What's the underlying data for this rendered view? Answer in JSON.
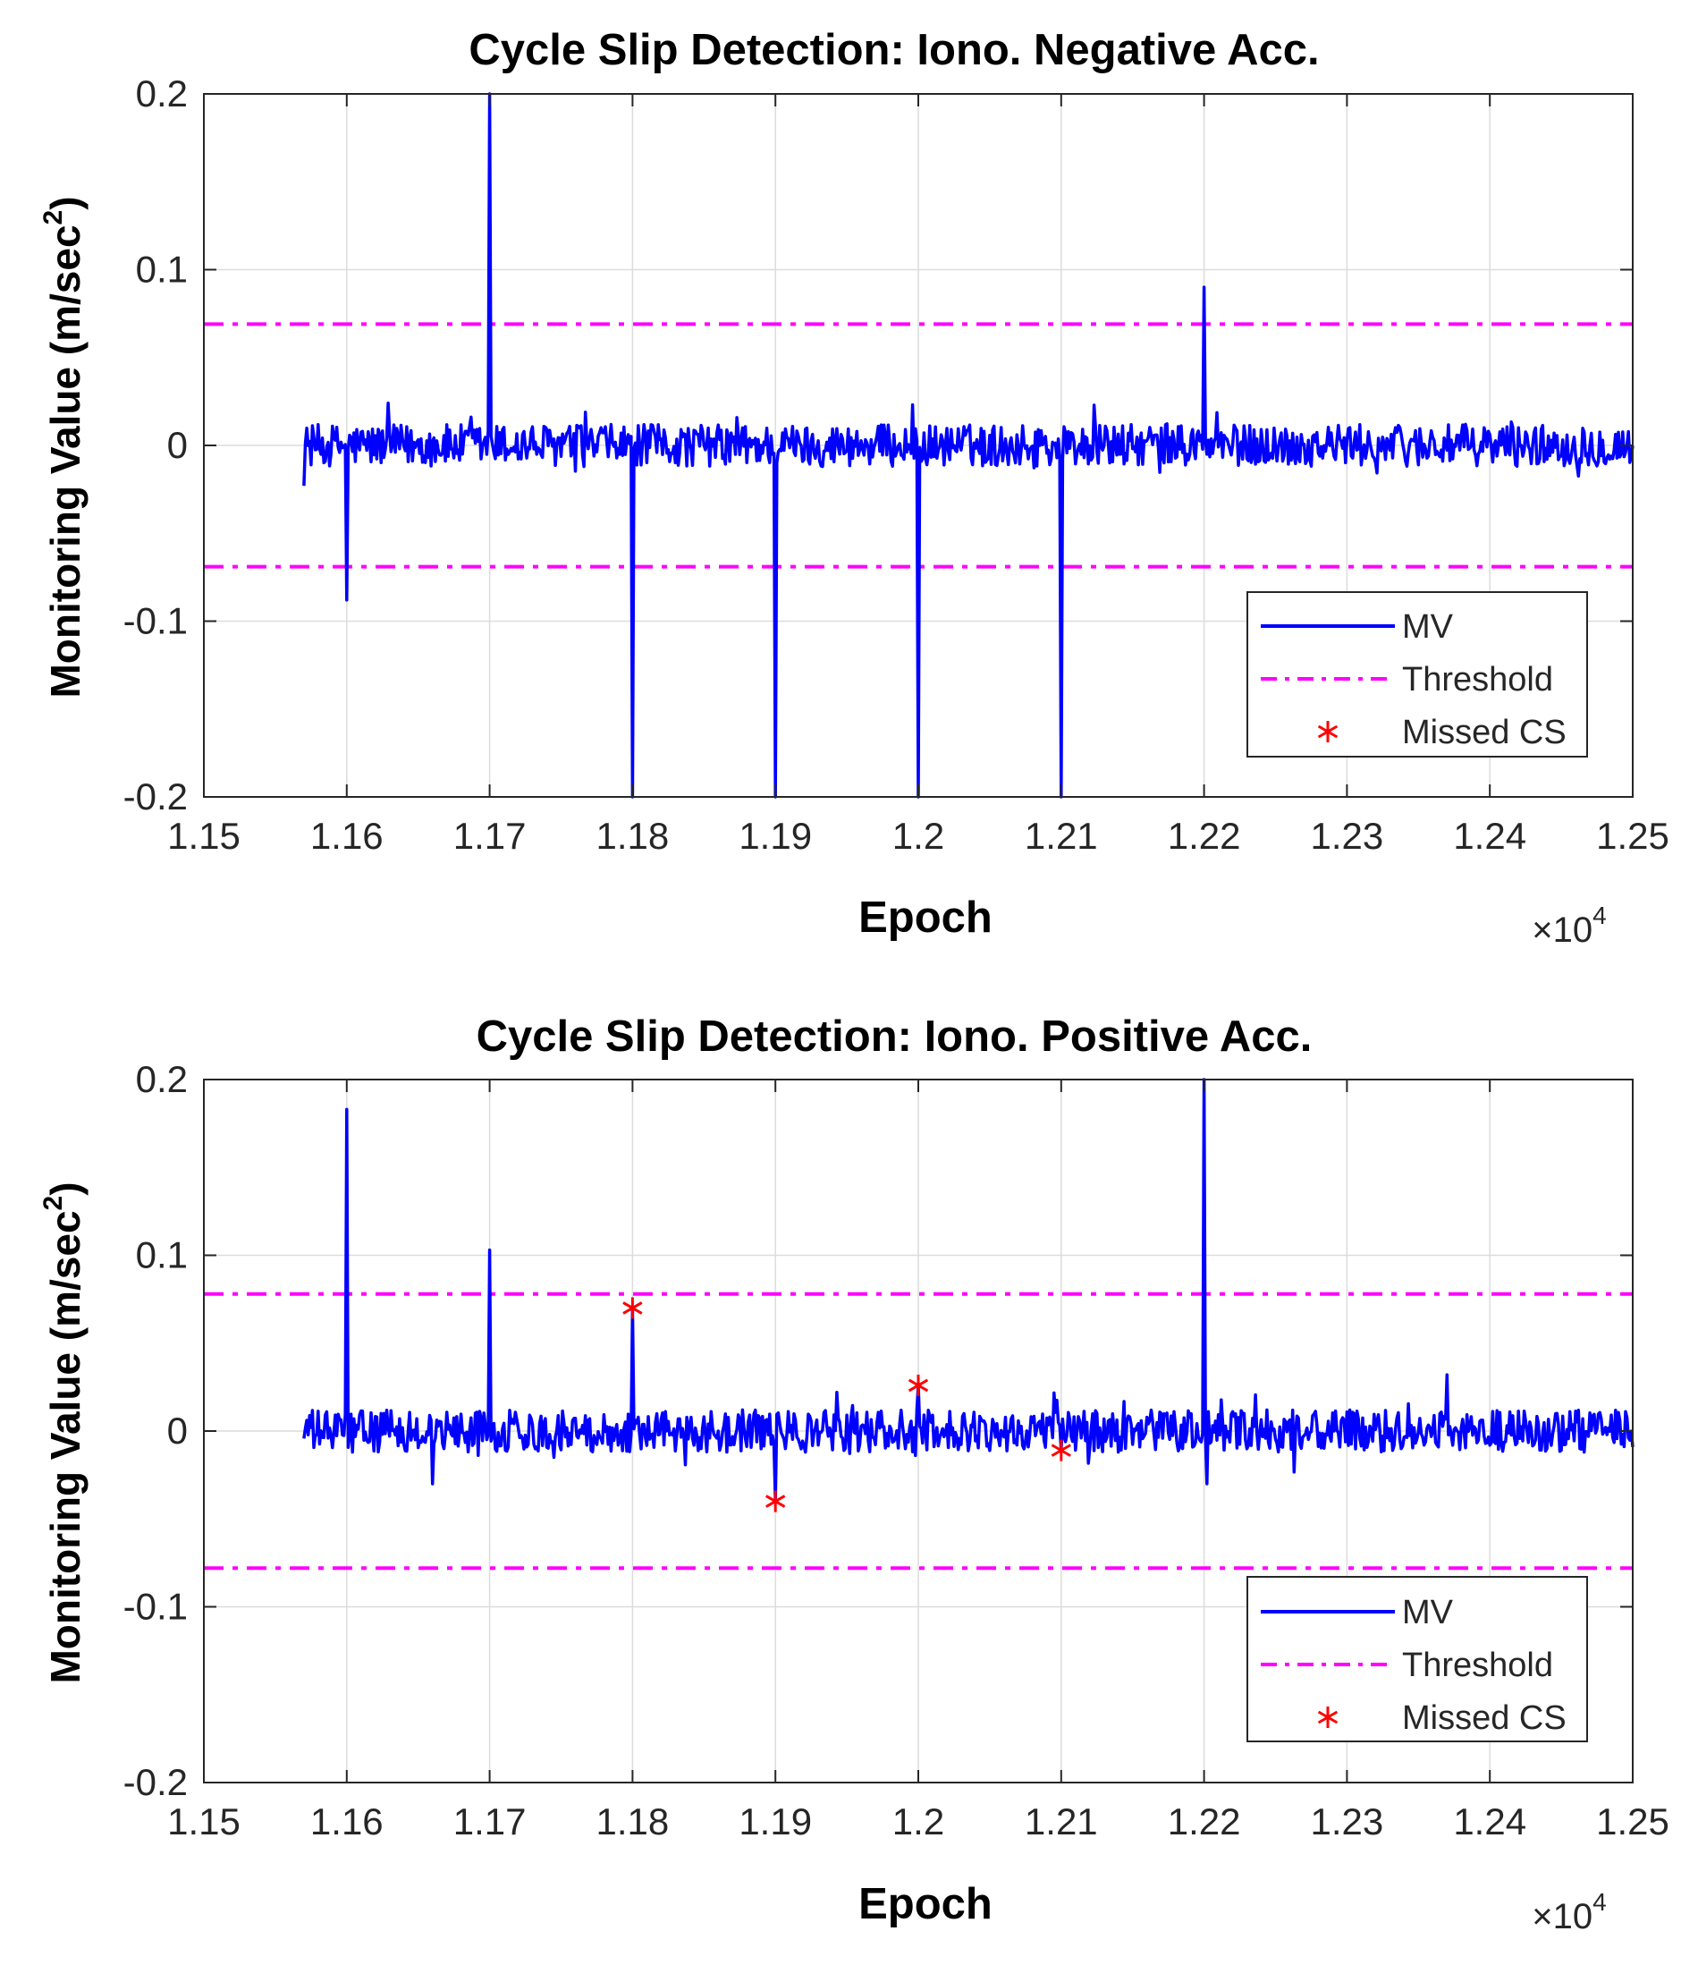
{
  "chart_data": [
    {
      "type": "line",
      "title": "Cycle Slip Detection: Iono. Negative Acc.",
      "xlabel": "Epoch",
      "ylabel": "Monitoring Value (m/sec",
      "ylabel_sup": "2",
      "ylabel_close": ")",
      "x_multiplier": "×10",
      "x_multiplier_exp": "4",
      "xlim": [
        11500,
        12500
      ],
      "ylim": [
        -0.2,
        0.2
      ],
      "xticks": [
        11500,
        11600,
        11700,
        11800,
        11900,
        12000,
        12100,
        12200,
        12300,
        12400,
        12500
      ],
      "xtick_labels": [
        "1.15",
        "1.16",
        "1.17",
        "1.18",
        "1.19",
        "1.2",
        "1.21",
        "1.22",
        "1.23",
        "1.24",
        "1.25"
      ],
      "yticks": [
        -0.2,
        -0.1,
        0,
        0.1,
        0.2
      ],
      "ytick_labels": [
        "-0.2",
        "-0.1",
        "0",
        "0.1",
        "0.2"
      ],
      "grid": true,
      "legend": {
        "position": "bottom-right",
        "entries": [
          "MV",
          "Threshold",
          "Missed CS"
        ]
      },
      "series": [
        {
          "name": "MV",
          "color": "#0000ff",
          "style": "solid",
          "x_start": 11570,
          "x_end": 12500,
          "noise_amplitude": 0.012,
          "spikes": [
            {
              "x": 11600,
              "y": -0.088
            },
            {
              "x": 11700,
              "y": 0.2
            },
            {
              "x": 11800,
              "y": -0.2
            },
            {
              "x": 11900,
              "y": -0.2
            },
            {
              "x": 12000,
              "y": -0.2
            },
            {
              "x": 12100,
              "y": -0.2
            },
            {
              "x": 12200,
              "y": 0.09
            }
          ]
        },
        {
          "name": "Threshold",
          "color": "#ff00ff",
          "style": "dash-dot",
          "values": [
            0.069,
            -0.069
          ]
        },
        {
          "name": "Missed CS",
          "color": "#ff0000",
          "marker": "*",
          "points": []
        }
      ]
    },
    {
      "type": "line",
      "title": "Cycle Slip Detection: Iono. Positive Acc.",
      "xlabel": "Epoch",
      "ylabel": "Monitoring Value (m/sec",
      "ylabel_sup": "2",
      "ylabel_close": ")",
      "x_multiplier": "×10",
      "x_multiplier_exp": "4",
      "xlim": [
        11500,
        12500
      ],
      "ylim": [
        -0.2,
        0.2
      ],
      "xticks": [
        11500,
        11600,
        11700,
        11800,
        11900,
        12000,
        12100,
        12200,
        12300,
        12400,
        12500
      ],
      "xtick_labels": [
        "1.15",
        "1.16",
        "1.17",
        "1.18",
        "1.19",
        "1.2",
        "1.21",
        "1.22",
        "1.23",
        "1.24",
        "1.25"
      ],
      "yticks": [
        -0.2,
        -0.1,
        0,
        0.1,
        0.2
      ],
      "ytick_labels": [
        "-0.2",
        "-0.1",
        "0",
        "0.1",
        "0.2"
      ],
      "grid": true,
      "legend": {
        "position": "bottom-right",
        "entries": [
          "MV",
          "Threshold",
          "Missed CS"
        ]
      },
      "series": [
        {
          "name": "MV",
          "color": "#0000ff",
          "style": "solid",
          "x_start": 11570,
          "x_end": 12500,
          "noise_amplitude": 0.012,
          "spikes": [
            {
              "x": 11600,
              "y": 0.183
            },
            {
              "x": 11700,
              "y": 0.103
            },
            {
              "x": 11800,
              "y": 0.07
            },
            {
              "x": 11900,
              "y": -0.04
            },
            {
              "x": 12000,
              "y": 0.026
            },
            {
              "x": 12100,
              "y": -0.011
            },
            {
              "x": 12200,
              "y": 0.2
            },
            {
              "x": 12202,
              "y": -0.03
            },
            {
              "x": 11660,
              "y": -0.03
            },
            {
              "x": 12370,
              "y": 0.032
            }
          ]
        },
        {
          "name": "Threshold",
          "color": "#ff00ff",
          "style": "dash-dot",
          "values": [
            0.078,
            -0.078
          ]
        },
        {
          "name": "Missed CS",
          "color": "#ff0000",
          "marker": "*",
          "points": [
            {
              "x": 11800,
              "y": 0.07
            },
            {
              "x": 11900,
              "y": -0.04
            },
            {
              "x": 12000,
              "y": 0.026
            },
            {
              "x": 12100,
              "y": -0.011
            }
          ]
        }
      ]
    }
  ]
}
